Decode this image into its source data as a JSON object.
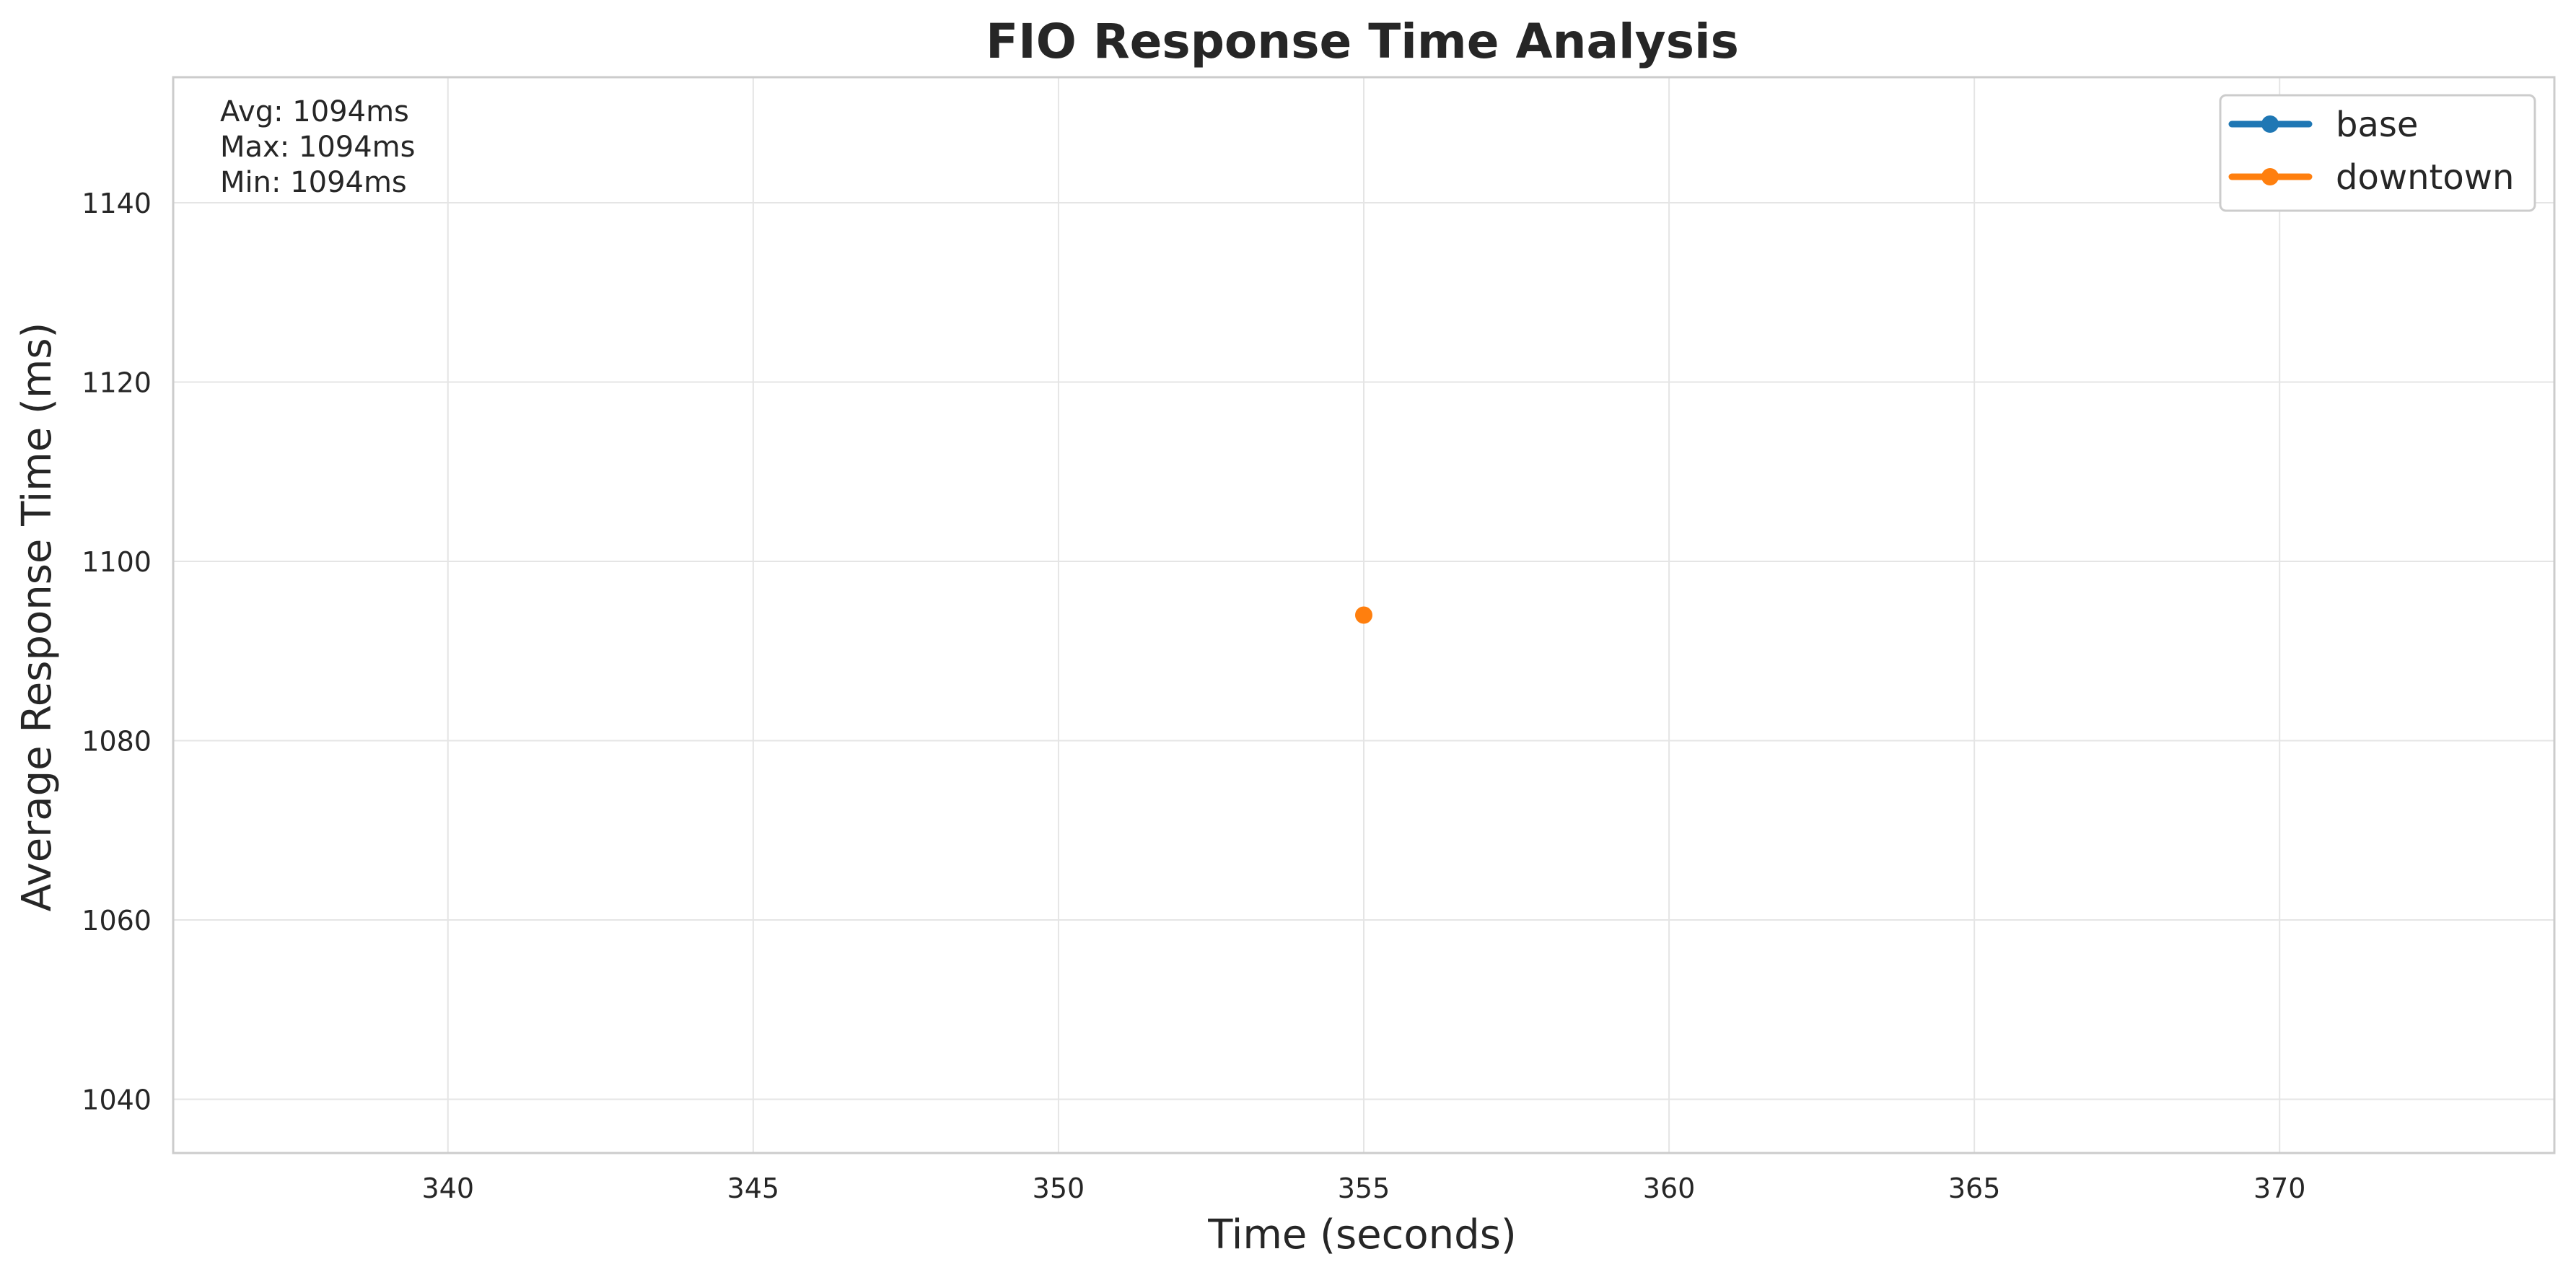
{
  "chart_data": {
    "type": "line",
    "title": "FIO Response Time Analysis",
    "xlabel": "Time (seconds)",
    "ylabel": "Average Response Time (ms)",
    "xlim": [
      335.5,
      374.5
    ],
    "ylim": [
      1034,
      1154
    ],
    "xticks": [
      340,
      345,
      350,
      355,
      360,
      365,
      370
    ],
    "yticks": [
      1040,
      1060,
      1080,
      1100,
      1120,
      1140
    ],
    "grid": true,
    "legend_position": "top-right",
    "series": [
      {
        "name": "base",
        "color": "#1f77b4",
        "points": []
      },
      {
        "name": "downtown",
        "color": "#ff7f0e",
        "points": [
          {
            "x": 355,
            "y": 1094
          }
        ]
      }
    ],
    "stats_lines": [
      "Avg: 1094ms",
      "Max: 1094ms",
      "Min: 1094ms"
    ]
  }
}
